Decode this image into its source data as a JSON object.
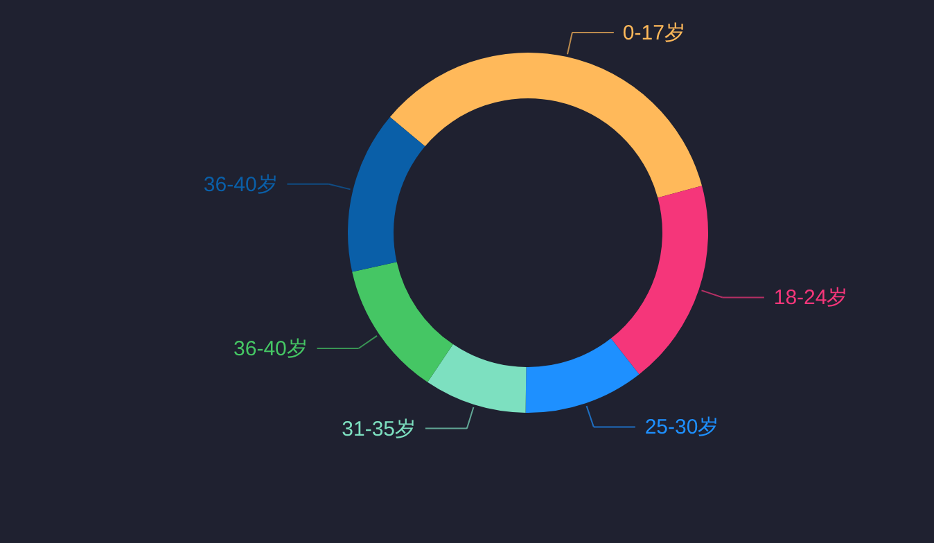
{
  "chart_data": {
    "type": "donut",
    "categories": [
      "0-17岁",
      "18-24岁",
      "25-30岁",
      "31-35岁",
      "36-40岁",
      "36-40岁"
    ],
    "values": [
      34.7,
      18.6,
      10.8,
      9.2,
      12.1,
      14.6
    ],
    "colors": [
      "#ffb95a",
      "#f5367a",
      "#1e90ff",
      "#7de0c0",
      "#45c664",
      "#0a5fa8"
    ]
  }
}
